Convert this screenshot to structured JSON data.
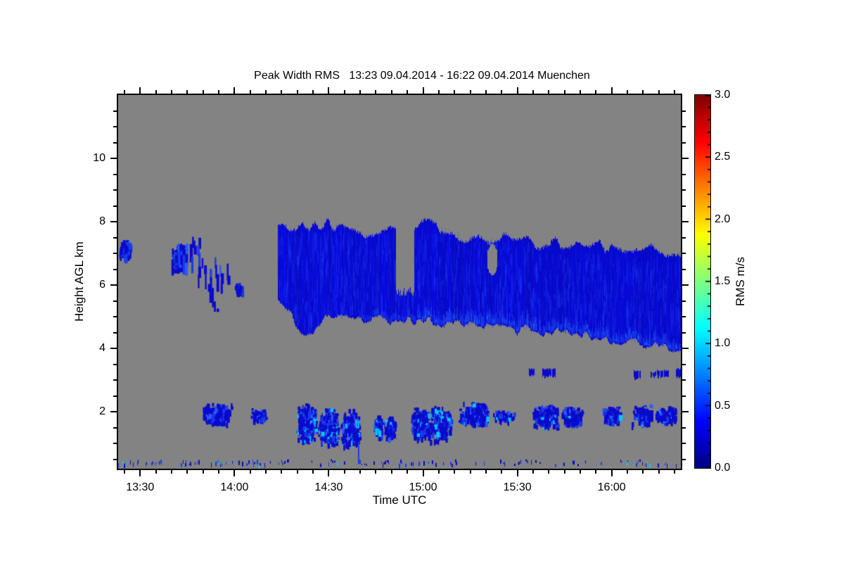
{
  "window": {
    "background": "#ffffff"
  },
  "chart_data": {
    "type": "heatmap",
    "title": "Peak Width RMS   13:23 09.04.2014 - 16:22 09.04.2014 Muenchen",
    "xlabel": "Time UTC",
    "ylabel": "Height AGL km",
    "x_axis": {
      "start": "13:23",
      "end": "16:22",
      "duration_min": 179,
      "minor_step_min": 5,
      "major_ticks": [
        {
          "t": 7,
          "label": "13:30"
        },
        {
          "t": 37,
          "label": "14:00"
        },
        {
          "t": 67,
          "label": "14:30"
        },
        {
          "t": 97,
          "label": "15:00"
        },
        {
          "t": 127,
          "label": "15:30"
        },
        {
          "t": 157,
          "label": "16:00"
        }
      ]
    },
    "y_axis": {
      "range_km": [
        0.2,
        12
      ],
      "minor_step_km": 0.5,
      "major_ticks": [
        {
          "km": 10,
          "label": "10"
        },
        {
          "km": 8,
          "label": "8"
        },
        {
          "km": 6,
          "label": "6"
        },
        {
          "km": 4,
          "label": "4"
        },
        {
          "km": 2,
          "label": "2"
        }
      ]
    },
    "colorbar": {
      "label": "RMS m/s",
      "range": [
        0,
        3
      ],
      "minor_step": 0.1,
      "colormap": "jet",
      "major_ticks": [
        {
          "v": 3.0,
          "label": "3.0"
        },
        {
          "v": 2.5,
          "label": "2.5"
        },
        {
          "v": 2.0,
          "label": "2.0"
        },
        {
          "v": 1.5,
          "label": "1.5"
        },
        {
          "v": 1.0,
          "label": "1.0"
        },
        {
          "v": 0.5,
          "label": "0.5"
        },
        {
          "v": 0.0,
          "label": "0.0"
        }
      ],
      "gradient_stops": [
        [
          0,
          "#000083"
        ],
        [
          0.125,
          "#0000ff"
        ],
        [
          0.375,
          "#00ffff"
        ],
        [
          0.625,
          "#ffff00"
        ],
        [
          0.875,
          "#ff0000"
        ],
        [
          1,
          "#7f0000"
        ]
      ]
    },
    "no_data_color": "#838383",
    "palette": {
      "base": "#0a0acd",
      "mid": "#1a3ce8",
      "light": "#2a5aff",
      "cyan": "#00c8ff"
    },
    "main_band": {
      "t_start": 50.8,
      "t_end": 179,
      "top_profile": [
        [
          50.8,
          7.8
        ],
        [
          56,
          7.9
        ],
        [
          62,
          7.85
        ],
        [
          68,
          7.95
        ],
        [
          74,
          7.8
        ],
        [
          80,
          7.7
        ],
        [
          85,
          7.8
        ],
        [
          88.5,
          7.85
        ],
        [
          94,
          7.8
        ],
        [
          98,
          7.9
        ],
        [
          103,
          7.85
        ],
        [
          106,
          7.75
        ],
        [
          110,
          7.5
        ],
        [
          114,
          7.65
        ],
        [
          118,
          7.45
        ],
        [
          122,
          7.55
        ],
        [
          126,
          7.4
        ],
        [
          130,
          7.5
        ],
        [
          134,
          7.3
        ],
        [
          138,
          7.4
        ],
        [
          142,
          7.25
        ],
        [
          146,
          7.3
        ],
        [
          150,
          7.15
        ],
        [
          154,
          7.25
        ],
        [
          158,
          7.05
        ],
        [
          162,
          7.15
        ],
        [
          166,
          6.95
        ],
        [
          170,
          7.1
        ],
        [
          174,
          6.9
        ],
        [
          179,
          7.1
        ]
      ],
      "bottom_profile": [
        [
          50.8,
          5.55
        ],
        [
          53,
          5.3
        ],
        [
          55,
          5.05
        ],
        [
          57,
          4.7
        ],
        [
          59,
          4.45
        ],
        [
          62,
          4.4
        ],
        [
          64,
          4.75
        ],
        [
          67,
          5.05
        ],
        [
          71,
          4.95
        ],
        [
          75,
          5.05
        ],
        [
          79,
          4.9
        ],
        [
          83,
          5.0
        ],
        [
          87,
          4.85
        ],
        [
          91,
          4.95
        ],
        [
          95,
          4.85
        ],
        [
          99,
          4.9
        ],
        [
          103,
          4.75
        ],
        [
          107,
          4.85
        ],
        [
          111,
          4.7
        ],
        [
          115,
          4.78
        ],
        [
          119,
          4.65
        ],
        [
          123,
          4.72
        ],
        [
          127,
          4.55
        ],
        [
          131,
          4.65
        ],
        [
          135,
          4.5
        ],
        [
          139,
          4.6
        ],
        [
          143,
          4.45
        ],
        [
          147,
          4.5
        ],
        [
          151,
          4.35
        ],
        [
          155,
          4.3
        ],
        [
          159,
          4.2
        ],
        [
          163,
          4.25
        ],
        [
          167,
          4.1
        ],
        [
          171,
          4.1
        ],
        [
          175,
          4.0
        ],
        [
          179,
          3.85
        ]
      ],
      "gap": {
        "t0": 88.5,
        "t1": 94,
        "h_bottom": 5.8
      },
      "hole": {
        "t0": 117.5,
        "t1": 120.4,
        "h0": 6.3,
        "h1": 7.3
      }
    },
    "patches": [
      {
        "t0": 0,
        "t1": 4,
        "h0": 6.85,
        "h1": 7.45,
        "style": "blob",
        "density": 0.28
      },
      {
        "t0": 17,
        "t1": 21.5,
        "h0": 6.45,
        "h1": 7.35,
        "style": "blob",
        "density": 0.2
      },
      {
        "t0": 17,
        "t1": 22.5,
        "h0": 6.3,
        "h1": 7.5,
        "style": "streaks"
      },
      {
        "t0": 22,
        "t1": 26.5,
        "h0": 5.9,
        "h1": 7.85,
        "style": "streaks"
      },
      {
        "t0": 26.5,
        "t1": 35,
        "h0": 5.15,
        "h1": 7.1,
        "style": "streaks",
        "drift": 1.2
      },
      {
        "t0": 37,
        "t1": 39.5,
        "h0": 5.75,
        "h1": 6.1,
        "style": "blob",
        "density": 0.3
      },
      {
        "t0": 26,
        "t1": 36,
        "h0": 1.6,
        "h1": 2.3,
        "style": "blob",
        "density": 0.14,
        "cyan": 0.02
      },
      {
        "t0": 42,
        "t1": 47,
        "h0": 1.7,
        "h1": 2.15,
        "style": "blob",
        "density": 0.16,
        "cyan": 0.02
      },
      {
        "t0": 56.5,
        "t1": 63,
        "h0": 1.0,
        "h1": 2.3,
        "style": "blob",
        "density": 0.16,
        "cyan": 0.1
      },
      {
        "t0": 63.5,
        "t1": 70,
        "h0": 0.95,
        "h1": 2.2,
        "style": "blob",
        "density": 0.16,
        "cyan": 0.1
      },
      {
        "t0": 70.5,
        "t1": 77,
        "h0": 0.9,
        "h1": 2.1,
        "style": "blob",
        "density": 0.13,
        "cyan": 0.08
      },
      {
        "t0": 81,
        "t1": 84,
        "h0": 1.2,
        "h1": 1.95,
        "style": "blob",
        "density": 0.17,
        "cyan": 0.12
      },
      {
        "t0": 84.5,
        "t1": 88,
        "h0": 1.15,
        "h1": 1.9,
        "style": "blob",
        "density": 0.15,
        "cyan": 0.12
      },
      {
        "t0": 93,
        "t1": 99,
        "h0": 1.05,
        "h1": 2.15,
        "style": "blob",
        "density": 0.16,
        "cyan": 0.1
      },
      {
        "t0": 99,
        "t1": 106,
        "h0": 1.1,
        "h1": 2.2,
        "style": "blob",
        "density": 0.14,
        "cyan": 0.1
      },
      {
        "t0": 108,
        "t1": 118,
        "h0": 1.6,
        "h1": 2.35,
        "style": "blob",
        "density": 0.15,
        "cyan": 0.03
      },
      {
        "t0": 118,
        "t1": 126,
        "h0": 1.7,
        "h1": 2.1,
        "style": "blob",
        "density": 0.07,
        "cyan": 0.02
      },
      {
        "t0": 131.5,
        "t1": 140,
        "h0": 1.55,
        "h1": 2.25,
        "style": "blob",
        "density": 0.15,
        "cyan": 0.03
      },
      {
        "t0": 140,
        "t1": 148,
        "h0": 1.6,
        "h1": 2.2,
        "style": "blob",
        "density": 0.13,
        "cyan": 0.02
      },
      {
        "t0": 154,
        "t1": 160,
        "h0": 1.65,
        "h1": 2.2,
        "style": "blob",
        "density": 0.14,
        "cyan": 0.02
      },
      {
        "t0": 163,
        "t1": 170,
        "h0": 1.6,
        "h1": 2.25,
        "style": "blob",
        "density": 0.12,
        "cyan": 0.03
      },
      {
        "t0": 170.5,
        "t1": 178,
        "h0": 1.65,
        "h1": 2.2,
        "style": "blob",
        "density": 0.12,
        "cyan": 0.03
      }
    ],
    "mid_level_dots": [
      {
        "t0": 130.8,
        "t1": 132.3,
        "h0": 3.15,
        "h1": 3.35
      },
      {
        "t0": 135,
        "t1": 139,
        "h0": 3.1,
        "h1": 3.35
      },
      {
        "t0": 164,
        "t1": 166.2,
        "h0": 3.05,
        "h1": 3.3
      },
      {
        "t0": 169.5,
        "t1": 171,
        "h0": 3.1,
        "h1": 3.25
      },
      {
        "t0": 171.5,
        "t1": 175,
        "h0": 3.1,
        "h1": 3.3
      },
      {
        "t0": 177.5,
        "t1": 179,
        "h0": 3.1,
        "h1": 3.35
      }
    ],
    "surface_line": {
      "h": 0.42,
      "spread_km": 0.12,
      "t0": 0,
      "t1": 179
    },
    "spike": {
      "t": 76.5,
      "h0": 0.35,
      "h1": 1.05
    }
  }
}
